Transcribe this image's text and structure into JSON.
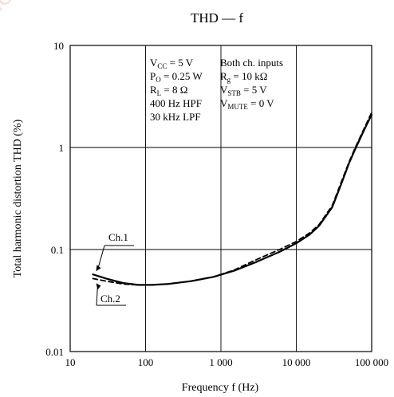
{
  "watermark": "visit followwww.semi",
  "chart_data": {
    "type": "line",
    "title": "THD — f",
    "xlabel": "Frequency  f  (Hz)",
    "ylabel": "Total harmonic distortion  THD  (%)",
    "xscale": "log",
    "yscale": "log",
    "xlim": [
      10,
      100000
    ],
    "ylim": [
      0.01,
      10
    ],
    "grid": true,
    "x_tick_labels": [
      "10",
      "100",
      "1 000",
      "10 000",
      "100 000"
    ],
    "y_tick_labels": [
      "0.01",
      "0.1",
      "1",
      "10"
    ],
    "conditions_left": [
      "V_CC = 5 V",
      "P_O = 0.25 W",
      "R_L = 8 Ω",
      "400 Hz HPF",
      "30 kHz LPF"
    ],
    "conditions_right": [
      "Both ch. inputs",
      "R_g = 10 kΩ",
      "V_STB = 5 V",
      "V_MUTE = 0 V"
    ],
    "series": [
      {
        "name": "Ch.1",
        "style": "solid",
        "x": [
          20,
          30,
          50,
          80,
          120,
          200,
          400,
          800,
          1500,
          3000,
          6000,
          10000,
          15000,
          20000,
          30000,
          40000,
          50000,
          60000,
          80000,
          100000
        ],
        "y": [
          0.057,
          0.052,
          0.047,
          0.045,
          0.045,
          0.046,
          0.049,
          0.054,
          0.062,
          0.076,
          0.095,
          0.115,
          0.14,
          0.17,
          0.26,
          0.45,
          0.7,
          0.95,
          1.5,
          2.1
        ]
      },
      {
        "name": "Ch.2",
        "style": "dashed",
        "x": [
          20,
          30,
          50,
          80,
          120,
          200,
          400,
          800,
          1500,
          3000,
          6000,
          10000,
          15000,
          20000,
          30000,
          40000,
          50000,
          60000,
          80000,
          100000
        ],
        "y": [
          0.052,
          0.049,
          0.046,
          0.045,
          0.045,
          0.046,
          0.049,
          0.054,
          0.063,
          0.08,
          0.1,
          0.12,
          0.145,
          0.175,
          0.27,
          0.47,
          0.72,
          0.98,
          1.55,
          2.2
        ]
      }
    ]
  }
}
